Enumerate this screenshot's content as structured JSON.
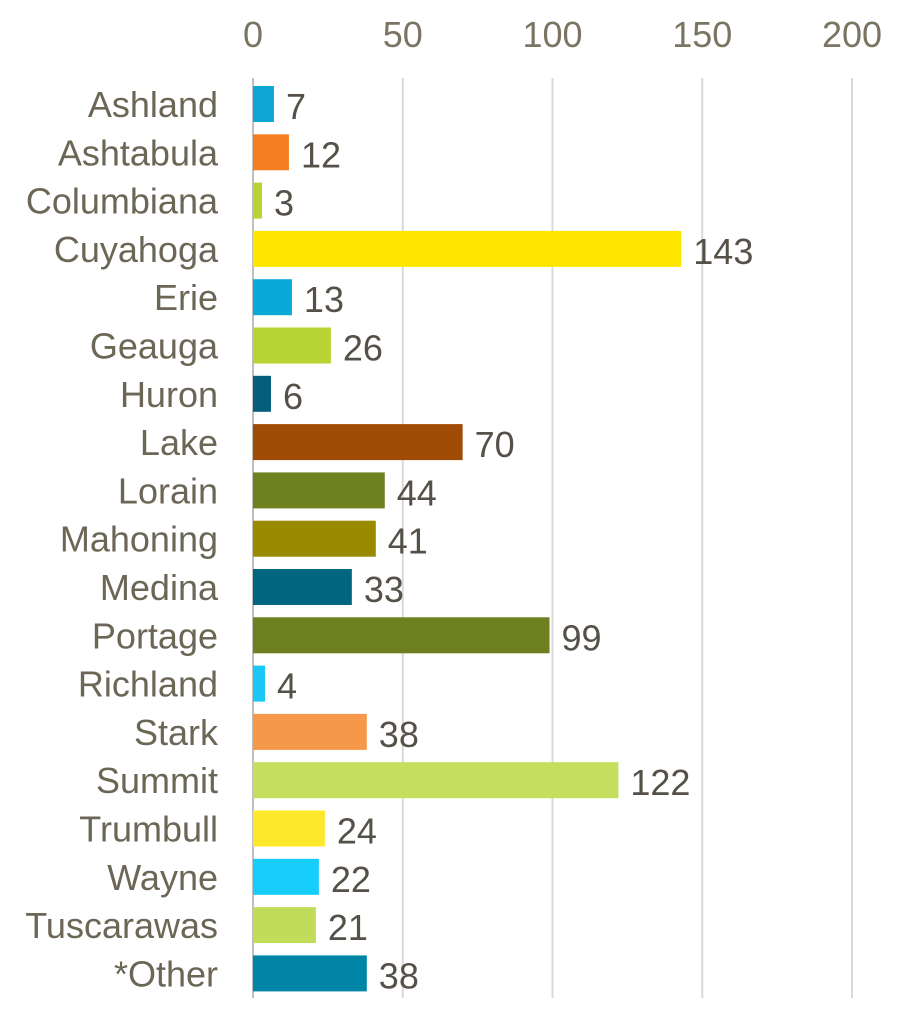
{
  "chart_data": {
    "type": "bar",
    "orientation": "horizontal",
    "title": "",
    "xlabel": "",
    "ylabel": "",
    "xlim": [
      0,
      200
    ],
    "x_ticks": [
      0,
      50,
      100,
      150,
      200
    ],
    "x_tick_labels": [
      "0",
      "50",
      "100",
      "150",
      "200"
    ],
    "x_axis_position": "top",
    "grid": true,
    "legend": "none",
    "categories": [
      "Ashland",
      "Ashtabula",
      "Columbiana",
      "Cuyahoga",
      "Erie",
      "Geauga",
      "Huron",
      "Lake",
      "Lorain",
      "Mahoning",
      "Medina",
      "Portage",
      "Richland",
      "Stark",
      "Summit",
      "Trumbull",
      "Wayne",
      "Tuscarawas",
      "*Other"
    ],
    "values": [
      7,
      12,
      3,
      143,
      13,
      26,
      6,
      70,
      44,
      41,
      33,
      99,
      4,
      38,
      122,
      24,
      22,
      21,
      38
    ],
    "value_labels": [
      "7",
      "12",
      "3",
      "143",
      "13",
      "26",
      "6",
      "70",
      "44",
      "41",
      "33",
      "99",
      "4",
      "38",
      "122",
      "24",
      "22",
      "21",
      "38"
    ],
    "colors": [
      "#0fa6d6",
      "#f47e20",
      "#b8d432",
      "#ffe600",
      "#0aaad8",
      "#b8d432",
      "#04607a",
      "#a04b06",
      "#6f811f",
      "#9a8a00",
      "#006680",
      "#6d7f1f",
      "#19c8f5",
      "#f5984a",
      "#c6de5e",
      "#fde82c",
      "#16cdfb",
      "#c1dc58",
      "#0085a6"
    ]
  }
}
